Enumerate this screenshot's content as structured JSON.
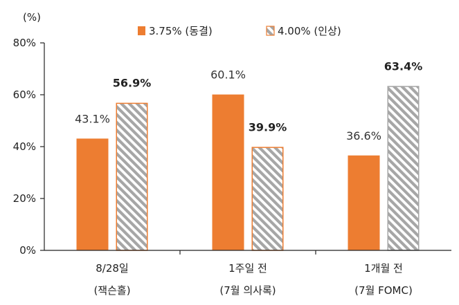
{
  "chart_data": {
    "type": "bar",
    "unit_label": "(%)",
    "categories": [
      [
        "8/28일",
        "(잭슨홀)"
      ],
      [
        "1주일 전",
        "(7월 의사록)"
      ],
      [
        "1개월 전",
        "(7월 FOMC)"
      ]
    ],
    "series": [
      {
        "name": "3.75% (동결)",
        "values": [
          43.1,
          60.1,
          36.6
        ],
        "labels": [
          "43.1%",
          "60.1%",
          "36.6%"
        ],
        "color": "#ed7d31",
        "pattern": "solid"
      },
      {
        "name": "4.00% (인상)",
        "values": [
          56.9,
          39.9,
          63.4
        ],
        "labels": [
          "56.9%",
          "39.9%",
          "63.4%"
        ],
        "color": "#a6a6a6",
        "pattern": "diagonal-stripes",
        "border_colors": [
          "#ed7d31",
          "#ed7d31",
          "#a6a6a6"
        ]
      }
    ],
    "ylim": [
      0,
      80
    ],
    "yticks": [
      0,
      20,
      40,
      60,
      80
    ],
    "ytick_labels": [
      "0%",
      "20%",
      "40%",
      "60%",
      "80%"
    ],
    "grid": false,
    "legend_position": "top-center"
  }
}
